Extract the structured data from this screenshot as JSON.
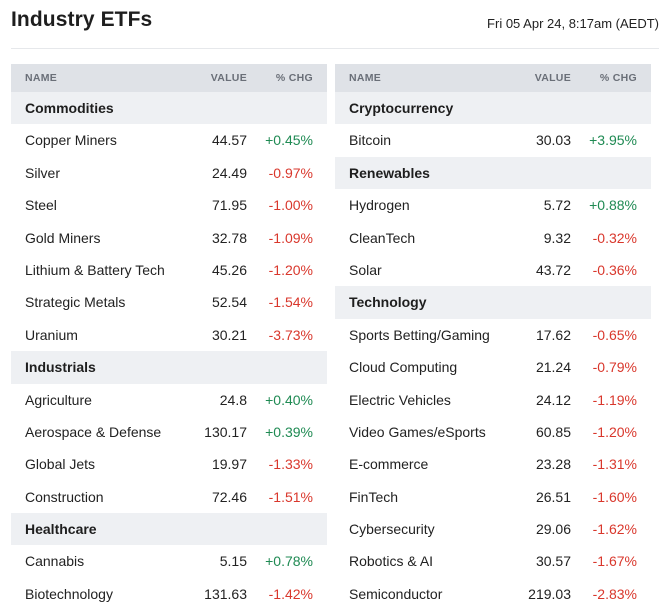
{
  "header": {
    "title": "Industry ETFs",
    "timestamp": "Fri 05 Apr 24, 8:17am (AEDT)"
  },
  "columns": {
    "name": "NAME",
    "value": "VALUE",
    "change": "% CHG"
  },
  "colors": {
    "positive": "#1f8a53",
    "negative": "#d9372c",
    "category_bg": "#eef0f3",
    "header_bg": "#dfe2e7"
  },
  "left_table": [
    {
      "category": "Commodities"
    },
    {
      "name": "Copper Miners",
      "value": "44.57",
      "change": "+0.45%"
    },
    {
      "name": "Silver",
      "value": "24.49",
      "change": "-0.97%"
    },
    {
      "name": "Steel",
      "value": "71.95",
      "change": "-1.00%"
    },
    {
      "name": "Gold Miners",
      "value": "32.78",
      "change": "-1.09%"
    },
    {
      "name": "Lithium & Battery Tech",
      "value": "45.26",
      "change": "-1.20%"
    },
    {
      "name": "Strategic Metals",
      "value": "52.54",
      "change": "-1.54%"
    },
    {
      "name": "Uranium",
      "value": "30.21",
      "change": "-3.73%"
    },
    {
      "category": "Industrials"
    },
    {
      "name": "Agriculture",
      "value": "24.8",
      "change": "+0.40%"
    },
    {
      "name": "Aerospace & Defense",
      "value": "130.17",
      "change": "+0.39%"
    },
    {
      "name": "Global Jets",
      "value": "19.97",
      "change": "-1.33%"
    },
    {
      "name": "Construction",
      "value": "72.46",
      "change": "-1.51%"
    },
    {
      "category": "Healthcare"
    },
    {
      "name": "Cannabis",
      "value": "5.15",
      "change": "+0.78%"
    },
    {
      "name": "Biotechnology",
      "value": "131.63",
      "change": "-1.42%"
    }
  ],
  "right_table": [
    {
      "category": "Cryptocurrency"
    },
    {
      "name": "Bitcoin",
      "value": "30.03",
      "change": "+3.95%"
    },
    {
      "category": "Renewables"
    },
    {
      "name": "Hydrogen",
      "value": "5.72",
      "change": "+0.88%"
    },
    {
      "name": "CleanTech",
      "value": "9.32",
      "change": "-0.32%"
    },
    {
      "name": "Solar",
      "value": "43.72",
      "change": "-0.36%"
    },
    {
      "category": "Technology"
    },
    {
      "name": "Sports Betting/Gaming",
      "value": "17.62",
      "change": "-0.65%"
    },
    {
      "name": "Cloud Computing",
      "value": "21.24",
      "change": "-0.79%"
    },
    {
      "name": "Electric Vehicles",
      "value": "24.12",
      "change": "-1.19%"
    },
    {
      "name": "Video Games/eSports",
      "value": "60.85",
      "change": "-1.20%"
    },
    {
      "name": "E-commerce",
      "value": "23.28",
      "change": "-1.31%"
    },
    {
      "name": "FinTech",
      "value": "26.51",
      "change": "-1.60%"
    },
    {
      "name": "Cybersecurity",
      "value": "29.06",
      "change": "-1.62%"
    },
    {
      "name": "Robotics & AI",
      "value": "30.57",
      "change": "-1.67%"
    },
    {
      "name": "Semiconductor",
      "value": "219.03",
      "change": "-2.83%"
    }
  ]
}
